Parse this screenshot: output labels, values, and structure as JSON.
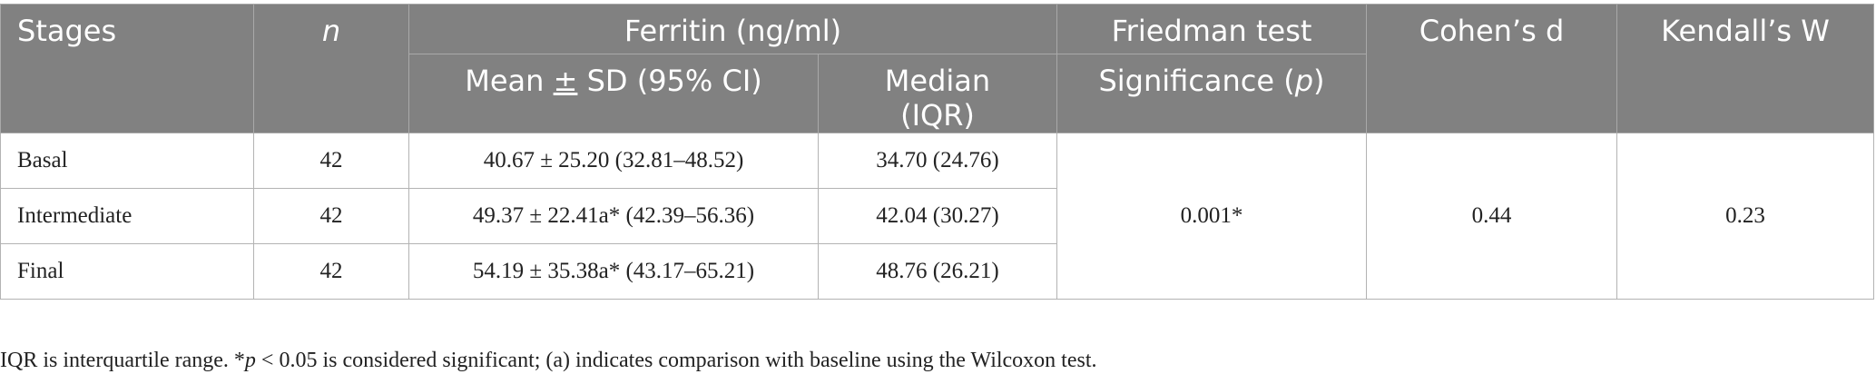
{
  "header": {
    "stages": "Stages",
    "n": "n",
    "ferritin": "Ferritin (ng/ml)",
    "friedman": "Friedman test",
    "cohens_d": "Cohen’s d",
    "kendalls_w": "Kendall’s W",
    "mean_sd_pre": "Mean ",
    "mean_sd_pm": "±",
    "mean_sd_post": " SD (95% CI)",
    "median_line1": "Median",
    "median_line2": "(IQR)",
    "significance_pre": "Significance (",
    "significance_p": "p",
    "significance_post": ")"
  },
  "rows": [
    {
      "stage": "Basal",
      "n": "42",
      "mean_sd": "40.67 ± 25.20 (32.81–48.52)",
      "median": "34.70 (24.76)"
    },
    {
      "stage": "Intermediate",
      "n": "42",
      "mean_sd": "49.37 ± 22.41a* (42.39–56.36)",
      "median": "42.04 (30.27)"
    },
    {
      "stage": "Final",
      "n": "42",
      "mean_sd": "54.19 ± 35.38a* (43.17–65.21)",
      "median": "48.76 (26.21)"
    }
  ],
  "merged": {
    "friedman_p": "0.001*",
    "cohens_d": "0.44",
    "kendalls_w": "0.23"
  },
  "note": {
    "part1": "IQR is interquartile range. *",
    "p": "p",
    "part2": " < 0.05 is considered significant; (a) indicates comparison with baseline using the Wilcoxon test."
  },
  "colors": {
    "header_bg": "#818181",
    "header_text": "#ffffff",
    "border": "#b3b3b3"
  }
}
